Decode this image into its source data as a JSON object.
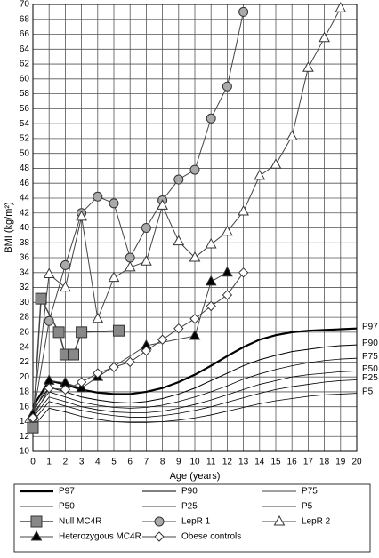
{
  "chart_data": {
    "type": "line",
    "ylabel": "BMI (kg/m²)",
    "xlabel": "Age (years)",
    "xlim": [
      0,
      20
    ],
    "xticks": [
      0,
      1,
      2,
      3,
      4,
      5,
      6,
      7,
      8,
      9,
      10,
      11,
      12,
      13,
      14,
      15,
      16,
      17,
      18,
      19,
      20
    ],
    "ylim": [
      10,
      70
    ],
    "yticks": [
      10,
      12,
      14,
      16,
      18,
      20,
      22,
      24,
      26,
      28,
      30,
      32,
      34,
      36,
      38,
      40,
      42,
      44,
      46,
      48,
      50,
      52,
      54,
      56,
      58,
      60,
      62,
      64,
      66,
      68,
      70
    ],
    "grid": true,
    "series": [
      {
        "name": "P97",
        "color": "#000000",
        "width": 2.2,
        "marker": null,
        "end_label": true,
        "x": [
          0,
          1,
          2,
          3,
          4,
          5,
          6,
          7,
          8,
          9,
          10,
          11,
          12,
          13,
          14,
          15,
          16,
          17,
          18,
          19,
          20
        ],
        "values": [
          16,
          19.5,
          19,
          18.3,
          17.9,
          17.7,
          17.7,
          18,
          18.5,
          19.3,
          20.3,
          21.5,
          22.8,
          24,
          25,
          25.6,
          26,
          26.2,
          26.3,
          26.4,
          26.5
        ]
      },
      {
        "name": "P90",
        "color": "#000000",
        "width": 1,
        "marker": null,
        "end_label": true,
        "x": [
          0,
          1,
          2,
          3,
          4,
          5,
          6,
          7,
          8,
          9,
          10,
          11,
          12,
          13,
          14,
          15,
          16,
          17,
          18,
          19,
          20
        ],
        "values": [
          15.5,
          18.6,
          18,
          17.3,
          16.9,
          16.6,
          16.5,
          16.7,
          17.1,
          17.7,
          18.5,
          19.5,
          20.5,
          21.5,
          22.3,
          22.9,
          23.4,
          23.7,
          24,
          24.2,
          24.3
        ]
      },
      {
        "name": "P75",
        "color": "#000000",
        "width": 0.8,
        "marker": null,
        "end_label": true,
        "x": [
          0,
          1,
          2,
          3,
          4,
          5,
          6,
          7,
          8,
          9,
          10,
          11,
          12,
          13,
          14,
          15,
          16,
          17,
          18,
          19,
          20
        ],
        "values": [
          15,
          18,
          17.3,
          16.6,
          16.2,
          15.9,
          15.8,
          15.9,
          16.2,
          16.7,
          17.3,
          18,
          18.8,
          19.7,
          20.4,
          21,
          21.5,
          21.9,
          22.2,
          22.4,
          22.5
        ]
      },
      {
        "name": "P50",
        "color": "#000000",
        "width": 0.8,
        "marker": null,
        "end_label": true,
        "x": [
          0,
          1,
          2,
          3,
          4,
          5,
          6,
          7,
          8,
          9,
          10,
          11,
          12,
          13,
          14,
          15,
          16,
          17,
          18,
          19,
          20
        ],
        "values": [
          14.5,
          17.3,
          16.7,
          16,
          15.6,
          15.3,
          15.2,
          15.2,
          15.4,
          15.8,
          16.3,
          16.9,
          17.6,
          18.3,
          19,
          19.5,
          20,
          20.3,
          20.5,
          20.7,
          20.8
        ]
      },
      {
        "name": "P25",
        "color": "#000000",
        "width": 0.8,
        "marker": null,
        "end_label": true,
        "x": [
          0,
          1,
          2,
          3,
          4,
          5,
          6,
          7,
          8,
          9,
          10,
          11,
          12,
          13,
          14,
          15,
          16,
          17,
          18,
          19,
          20
        ],
        "values": [
          14,
          16.7,
          16.1,
          15.5,
          15.1,
          14.8,
          14.6,
          14.6,
          14.8,
          15.1,
          15.5,
          16,
          16.6,
          17.2,
          17.8,
          18.3,
          18.7,
          19,
          19.3,
          19.5,
          19.6
        ]
      },
      {
        "name": "P5",
        "color": "#000000",
        "width": 0.8,
        "marker": null,
        "end_label": true,
        "x": [
          0,
          1,
          2,
          3,
          4,
          5,
          6,
          7,
          8,
          9,
          10,
          11,
          12,
          13,
          14,
          15,
          16,
          17,
          18,
          19,
          20
        ],
        "values": [
          13.3,
          15.8,
          15.3,
          14.7,
          14.3,
          14,
          13.9,
          13.9,
          14,
          14.2,
          14.5,
          14.9,
          15.4,
          15.9,
          16.4,
          16.8,
          17.1,
          17.4,
          17.6,
          17.7,
          17.8
        ]
      },
      {
        "name": "Null MC4R",
        "color": "#888888",
        "width": 1.5,
        "marker": "square",
        "end_label": false,
        "x": [
          0,
          0.5,
          1.6,
          2,
          2.5,
          3,
          5.3
        ],
        "values": [
          13.2,
          30.5,
          26,
          23,
          23,
          26,
          26.2
        ]
      },
      {
        "name": "LepR 1",
        "color": "#aaaaaa",
        "width": 1,
        "marker": "circle",
        "end_label": false,
        "x": [
          0,
          1,
          2,
          3,
          4,
          5,
          6,
          7,
          8,
          9,
          10,
          11,
          12,
          13
        ],
        "values": [
          14.5,
          27.5,
          35,
          42,
          44.2,
          43.3,
          36,
          40,
          43.7,
          46.5,
          47.8,
          54.7,
          59,
          69
        ]
      },
      {
        "name": "LepR 2",
        "color": "#ffffff",
        "width": 1,
        "marker": "triangle",
        "end_label": false,
        "x": [
          0,
          1,
          2,
          3,
          4,
          5,
          6,
          7,
          8,
          9,
          10,
          11,
          12,
          13,
          14,
          15,
          16,
          17,
          18,
          19
        ],
        "values": [
          15,
          33.8,
          32,
          41.5,
          27.8,
          33.3,
          34.7,
          35.5,
          43,
          38.2,
          36,
          37.8,
          39.5,
          42.2,
          47,
          48.5,
          52.3,
          61.5,
          65.5,
          69.5
        ]
      },
      {
        "name": "Heterozygous MC4R",
        "color": "#000000",
        "width": 1,
        "marker": "triangle",
        "end_label": false,
        "x": [
          0,
          1,
          2,
          3,
          4,
          7,
          10,
          11,
          12
        ],
        "values": [
          15,
          19.5,
          19.2,
          18.5,
          20,
          24.2,
          25.5,
          32.8,
          34
        ]
      },
      {
        "name": "Obese controls",
        "color": "#ffffff",
        "width": 1,
        "marker": "diamond",
        "end_label": false,
        "x": [
          0,
          1,
          2,
          3,
          4,
          5,
          6,
          7,
          8,
          9,
          10,
          11,
          12,
          13
        ],
        "values": [
          14.5,
          18.5,
          18.3,
          19.3,
          20.5,
          21.3,
          22,
          23.5,
          25,
          26.5,
          27.8,
          29.5,
          31,
          34
        ]
      }
    ]
  }
}
